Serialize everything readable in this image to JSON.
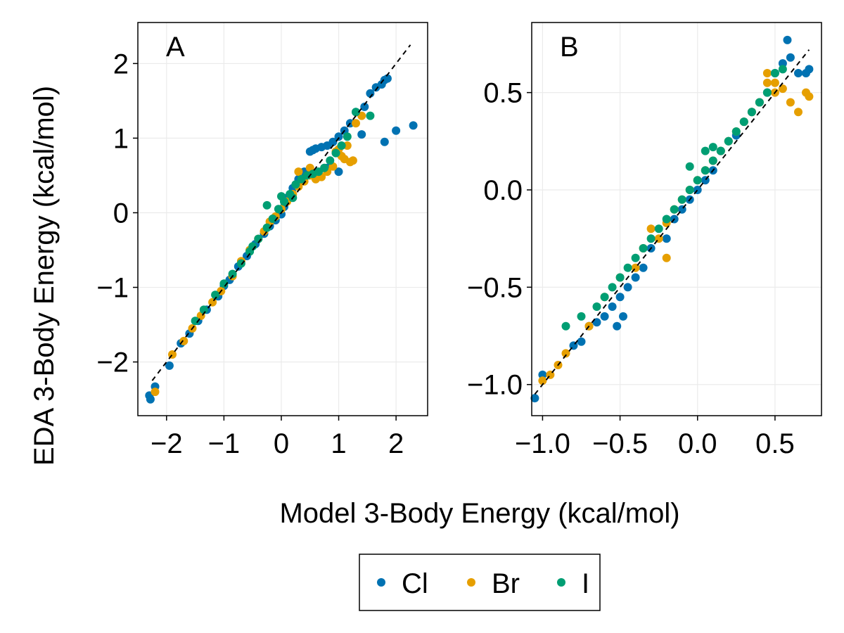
{
  "figure": {
    "ylabel": "EDA 3-Body Energy (kcal/mol)",
    "xlabel": "Model 3-Body Energy (kcal/mol)"
  },
  "legend": {
    "placement": "bottom-center",
    "entries": [
      {
        "label": "Cl",
        "color": "#0072B2"
      },
      {
        "label": "Br",
        "color": "#E69F00"
      },
      {
        "label": "I",
        "color": "#009E73"
      }
    ]
  },
  "chart_data": [
    {
      "type": "scatter",
      "panel_label": "A",
      "xlim": [
        -2.5,
        2.55
      ],
      "ylim": [
        -2.72,
        2.55
      ],
      "xticks": [
        -2,
        -1,
        0,
        1,
        2
      ],
      "yticks": [
        -2,
        -1,
        0,
        1,
        2
      ],
      "xtick_labels": [
        "−2",
        "−1",
        "0",
        "1",
        "2"
      ],
      "ytick_labels": [
        "−2",
        "−1",
        "0",
        "1",
        "2"
      ],
      "grid": true,
      "reference_line": {
        "style": "dashed",
        "x": [
          -2.25,
          2.25
        ],
        "y": [
          -2.25,
          2.25
        ]
      },
      "series": [
        {
          "name": "Cl",
          "color": "#0072B2",
          "x": [
            -2.3,
            -2.28,
            -2.2,
            -1.95,
            -1.75,
            -1.6,
            -1.45,
            -1.3,
            -1.1,
            -1.0,
            -0.9,
            -0.75,
            -0.6,
            -0.45,
            -0.3,
            -0.2,
            -0.1,
            0.0,
            0.05,
            0.1,
            0.2,
            0.3,
            0.4,
            0.5,
            0.55,
            0.6,
            0.7,
            0.8,
            0.9,
            1.0,
            1.1,
            1.2,
            1.3,
            1.45,
            1.55,
            1.65,
            1.75,
            1.8,
            1.85,
            1.4,
            1.8,
            2.0,
            2.3,
            1.0,
            0.8
          ],
          "y": [
            -2.45,
            -2.5,
            -2.33,
            -2.05,
            -1.75,
            -1.62,
            -1.45,
            -1.3,
            -1.12,
            -0.98,
            -0.9,
            -0.72,
            -0.58,
            -0.42,
            -0.28,
            -0.18,
            -0.1,
            -0.02,
            0.08,
            0.2,
            0.33,
            0.45,
            0.55,
            0.82,
            0.84,
            0.86,
            0.88,
            0.9,
            0.95,
            1.02,
            1.1,
            1.2,
            1.35,
            1.42,
            1.6,
            1.68,
            1.72,
            1.78,
            1.8,
            1.05,
            0.95,
            1.1,
            1.17,
            0.55,
            0.6
          ]
        },
        {
          "name": "Br",
          "color": "#E69F00",
          "x": [
            -2.2,
            -1.9,
            -1.7,
            -1.55,
            -1.4,
            -1.2,
            -1.05,
            -0.85,
            -0.7,
            -0.55,
            -0.4,
            -0.3,
            -0.2,
            -0.1,
            0.0,
            0.1,
            0.2,
            0.3,
            0.4,
            0.5,
            0.6,
            0.7,
            0.8,
            0.9,
            1.0,
            1.1,
            1.2,
            1.25,
            0.95,
            1.05,
            1.15,
            1.3,
            1.4,
            0.5,
            0.3
          ],
          "y": [
            -2.4,
            -1.9,
            -1.72,
            -1.55,
            -1.38,
            -1.2,
            -1.05,
            -0.85,
            -0.65,
            -0.5,
            -0.35,
            -0.25,
            -0.12,
            -0.05,
            0.05,
            0.15,
            0.25,
            0.35,
            0.42,
            0.5,
            0.45,
            0.48,
            0.55,
            0.62,
            0.85,
            0.72,
            0.68,
            0.7,
            0.82,
            0.76,
            0.9,
            1.2,
            1.3,
            0.6,
            0.55
          ]
        },
        {
          "name": "I",
          "color": "#009E73",
          "x": [
            -1.5,
            -1.35,
            -1.15,
            -1.0,
            -0.85,
            -0.7,
            -0.55,
            -0.4,
            -0.25,
            -0.15,
            -0.05,
            0.05,
            0.15,
            0.25,
            0.35,
            0.45,
            0.55,
            0.65,
            0.75,
            0.85,
            0.95,
            1.05,
            1.15,
            1.3,
            1.55,
            -0.25,
            0.0,
            0.2,
            -0.5
          ],
          "y": [
            -1.45,
            -1.3,
            -1.1,
            -0.95,
            -0.82,
            -0.68,
            -0.52,
            -0.35,
            -0.2,
            -0.08,
            0.05,
            0.15,
            0.25,
            0.38,
            0.45,
            0.5,
            0.52,
            0.55,
            0.6,
            0.7,
            0.8,
            0.9,
            1.02,
            1.35,
            1.3,
            0.1,
            0.22,
            0.2,
            -0.45
          ]
        }
      ]
    },
    {
      "type": "scatter",
      "panel_label": "B",
      "xlim": [
        -1.07,
        0.8
      ],
      "ylim": [
        -1.16,
        0.86
      ],
      "xticks": [
        -1.0,
        -0.5,
        0.0,
        0.5
      ],
      "yticks": [
        -1.0,
        -0.5,
        0.0,
        0.5
      ],
      "xtick_labels": [
        "−1.0",
        "−0.5",
        "0.0",
        "0.5"
      ],
      "ytick_labels": [
        "−1.0",
        "−0.5",
        "0.0",
        "0.5"
      ],
      "grid": true,
      "reference_line": {
        "style": "dashed",
        "x": [
          -1.05,
          0.72
        ],
        "y": [
          -1.05,
          0.72
        ]
      },
      "series": [
        {
          "name": "Cl",
          "color": "#0072B2",
          "x": [
            -1.05,
            -1.0,
            -0.8,
            -0.7,
            -0.6,
            -0.55,
            -0.5,
            -0.45,
            -0.4,
            -0.35,
            -0.3,
            -0.2,
            -0.15,
            -0.1,
            -0.05,
            0.0,
            0.05,
            0.1,
            0.15,
            0.2,
            0.25,
            0.3,
            0.35,
            0.4,
            0.45,
            0.5,
            0.55,
            0.6,
            0.65,
            0.7,
            0.72,
            -0.75,
            -0.65,
            -0.52,
            -0.48,
            0.58
          ],
          "y": [
            -1.07,
            -0.95,
            -0.8,
            -0.7,
            -0.65,
            -0.6,
            -0.55,
            -0.5,
            -0.45,
            -0.4,
            -0.3,
            -0.25,
            -0.15,
            -0.1,
            -0.05,
            0.0,
            0.05,
            0.1,
            0.2,
            0.25,
            0.28,
            0.35,
            0.4,
            0.45,
            0.5,
            0.6,
            0.65,
            0.68,
            0.6,
            0.6,
            0.62,
            -0.78,
            -0.68,
            -0.7,
            -0.65,
            0.77
          ]
        },
        {
          "name": "Br",
          "color": "#E69F00",
          "x": [
            -1.0,
            -0.95,
            -0.9,
            -0.85,
            -0.7,
            -0.6,
            -0.5,
            -0.4,
            -0.35,
            -0.3,
            -0.2,
            -0.15,
            -0.1,
            -0.05,
            0.0,
            0.05,
            0.1,
            0.15,
            0.2,
            0.25,
            0.3,
            0.35,
            0.4,
            0.45,
            0.5,
            0.55,
            0.6,
            0.65,
            0.7,
            0.72,
            0.5,
            0.45,
            -0.2,
            -0.25
          ],
          "y": [
            -0.98,
            -0.95,
            -0.9,
            -0.84,
            -0.7,
            -0.55,
            -0.45,
            -0.4,
            -0.3,
            -0.2,
            -0.17,
            -0.1,
            -0.05,
            0.0,
            0.05,
            0.1,
            0.15,
            0.2,
            0.25,
            0.3,
            0.35,
            0.4,
            0.45,
            0.55,
            0.5,
            0.52,
            0.45,
            0.4,
            0.5,
            0.48,
            0.55,
            0.6,
            -0.35,
            -0.25
          ]
        },
        {
          "name": "I",
          "color": "#009E73",
          "x": [
            -0.85,
            -0.75,
            -0.65,
            -0.6,
            -0.55,
            -0.5,
            -0.45,
            -0.4,
            -0.35,
            -0.3,
            -0.25,
            -0.2,
            -0.15,
            -0.1,
            -0.05,
            0.0,
            0.05,
            0.1,
            0.15,
            0.2,
            0.25,
            0.3,
            0.35,
            0.4,
            0.45,
            0.5,
            0.55,
            -0.05,
            0.05,
            0.1
          ],
          "y": [
            -0.7,
            -0.65,
            -0.6,
            -0.55,
            -0.5,
            -0.45,
            -0.4,
            -0.35,
            -0.3,
            -0.25,
            -0.2,
            -0.15,
            -0.1,
            -0.05,
            0.0,
            0.05,
            0.1,
            0.15,
            0.2,
            0.25,
            0.3,
            0.35,
            0.4,
            0.45,
            0.5,
            0.6,
            0.62,
            0.12,
            0.2,
            0.22
          ]
        }
      ]
    }
  ]
}
